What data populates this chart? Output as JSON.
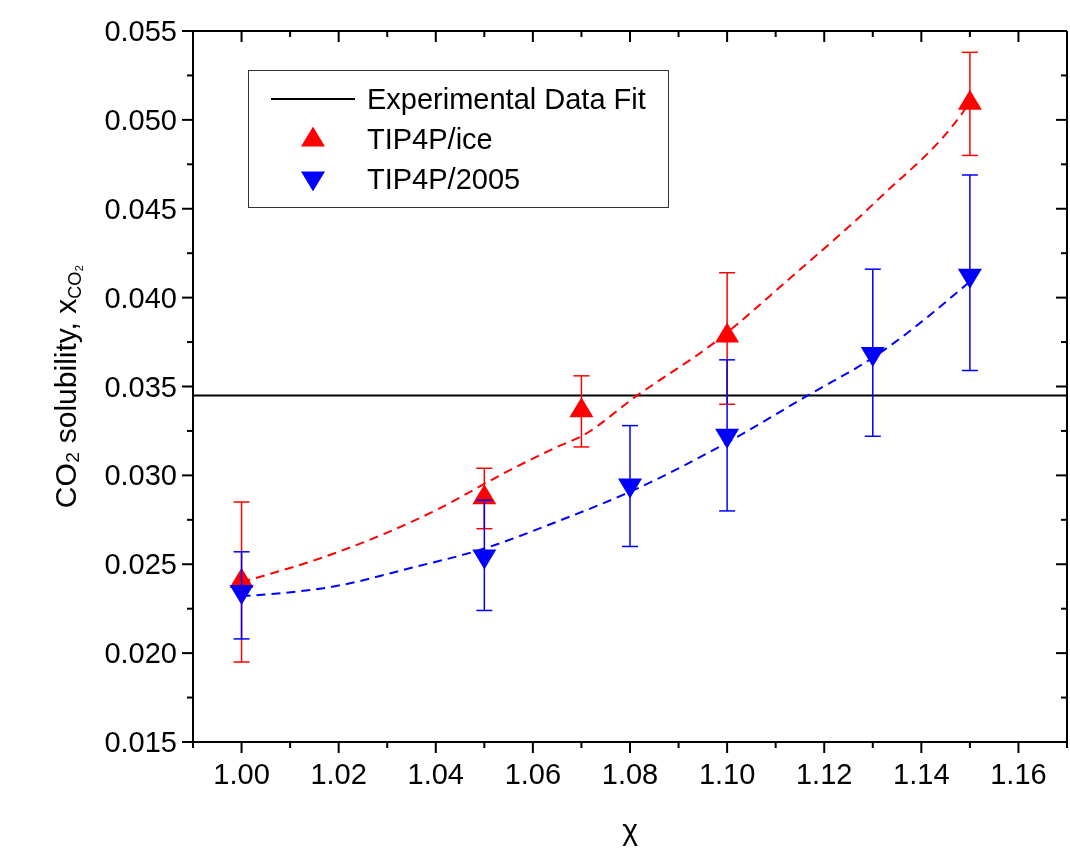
{
  "chart_data": {
    "type": "scatter",
    "xlabel": "χ",
    "ylabel": "CO₂ solubility, x$_{CO₂}$",
    "xlim": [
      0.99,
      1.17
    ],
    "ylim": [
      0.015,
      0.055
    ],
    "xticks": [
      {
        "value": 0.99,
        "label": null
      },
      {
        "value": 1.0,
        "label": "1.00"
      },
      {
        "value": 1.01,
        "label": null
      },
      {
        "value": 1.02,
        "label": "1.02"
      },
      {
        "value": 1.03,
        "label": null
      },
      {
        "value": 1.04,
        "label": "1.04"
      },
      {
        "value": 1.05,
        "label": null
      },
      {
        "value": 1.06,
        "label": "1.06"
      },
      {
        "value": 1.07,
        "label": null
      },
      {
        "value": 1.08,
        "label": "1.08"
      },
      {
        "value": 1.09,
        "label": null
      },
      {
        "value": 1.1,
        "label": "1.10"
      },
      {
        "value": 1.11,
        "label": null
      },
      {
        "value": 1.12,
        "label": "1.12"
      },
      {
        "value": 1.13,
        "label": null
      },
      {
        "value": 1.14,
        "label": "1.14"
      },
      {
        "value": 1.15,
        "label": null
      },
      {
        "value": 1.16,
        "label": "1.16"
      },
      {
        "value": 1.17,
        "label": null
      }
    ],
    "yticks": [
      0.015,
      {
        "value": 0.0175,
        "label": null
      },
      {
        "value": 0.02,
        "label": "0.020"
      },
      {
        "value": 0.0225,
        "label": null
      },
      0.025,
      {
        "value": 0.0275,
        "label": null
      },
      {
        "value": 0.03,
        "label": "0.030"
      },
      {
        "value": 0.0325,
        "label": null
      },
      0.035,
      {
        "value": 0.0375,
        "label": null
      },
      {
        "value": 0.04,
        "label": "0.040"
      },
      {
        "value": 0.0425,
        "label": null
      },
      0.045,
      {
        "value": 0.0475,
        "label": null
      },
      {
        "value": 0.05,
        "label": "0.050"
      },
      {
        "value": 0.0525,
        "label": null
      },
      0.055
    ],
    "legend": "top left",
    "series": [
      {
        "name": "Experimental Data Fit",
        "type": "line",
        "color": "#000000",
        "marker": "none",
        "line_style": "solid",
        "x": [
          0.99,
          1.17
        ],
        "values": [
          0.0345,
          0.0345
        ]
      },
      {
        "name": "TIP4P/ice",
        "color": "#ff0000",
        "marker": "triangle",
        "x": [
          1.0,
          1.05,
          1.07,
          1.1,
          1.15
        ],
        "values": [
          0.0241,
          0.0288,
          0.0337,
          0.0379,
          0.051
        ],
        "errors": [
          [
            0.0195,
            0.0285
          ],
          [
            0.027,
            0.0304
          ],
          [
            0.0316,
            0.0356
          ],
          [
            0.034,
            0.0414
          ],
          [
            0.048,
            0.0538
          ]
        ]
      },
      {
        "name": "TIP4P/2005",
        "color": "#0000ff",
        "marker": "triangle-down",
        "x": [
          1.0,
          1.05,
          1.08,
          1.1,
          1.13,
          1.15
        ],
        "values": [
          0.0234,
          0.0254,
          0.0294,
          0.0322,
          0.0368,
          0.0412
        ],
        "errors": [
          [
            0.0208,
            0.0257
          ],
          [
            0.0224,
            0.0286
          ],
          [
            0.026,
            0.0328
          ],
          [
            0.028,
            0.0365
          ],
          [
            0.0322,
            0.0416
          ],
          [
            0.0359,
            0.0469
          ]
        ]
      },
      {
        "type": "line",
        "color": "#ff0000",
        "marker": "none",
        "line_style": "dashed",
        "x": [
          1.0,
          1.02,
          1.039,
          1.056,
          1.065,
          1.07,
          1.081,
          1.098,
          1.113,
          1.131,
          1.149,
          1.15
        ],
        "values": [
          0.024,
          0.0257,
          0.0279,
          0.0304,
          0.0316,
          0.0322,
          0.0344,
          0.0376,
          0.0411,
          0.0455,
          0.0506,
          0.051
        ]
      },
      {
        "type": "line",
        "color": "#0000ff",
        "marker": "none",
        "line_style": "dashed",
        "x": [
          1.0,
          1.02,
          1.035,
          1.049,
          1.065,
          1.081,
          1.101,
          1.116,
          1.131,
          1.15
        ],
        "values": [
          0.0232,
          0.0238,
          0.0248,
          0.0258,
          0.0274,
          0.0292,
          0.032,
          0.0344,
          0.0368,
          0.0409
        ]
      }
    ]
  }
}
